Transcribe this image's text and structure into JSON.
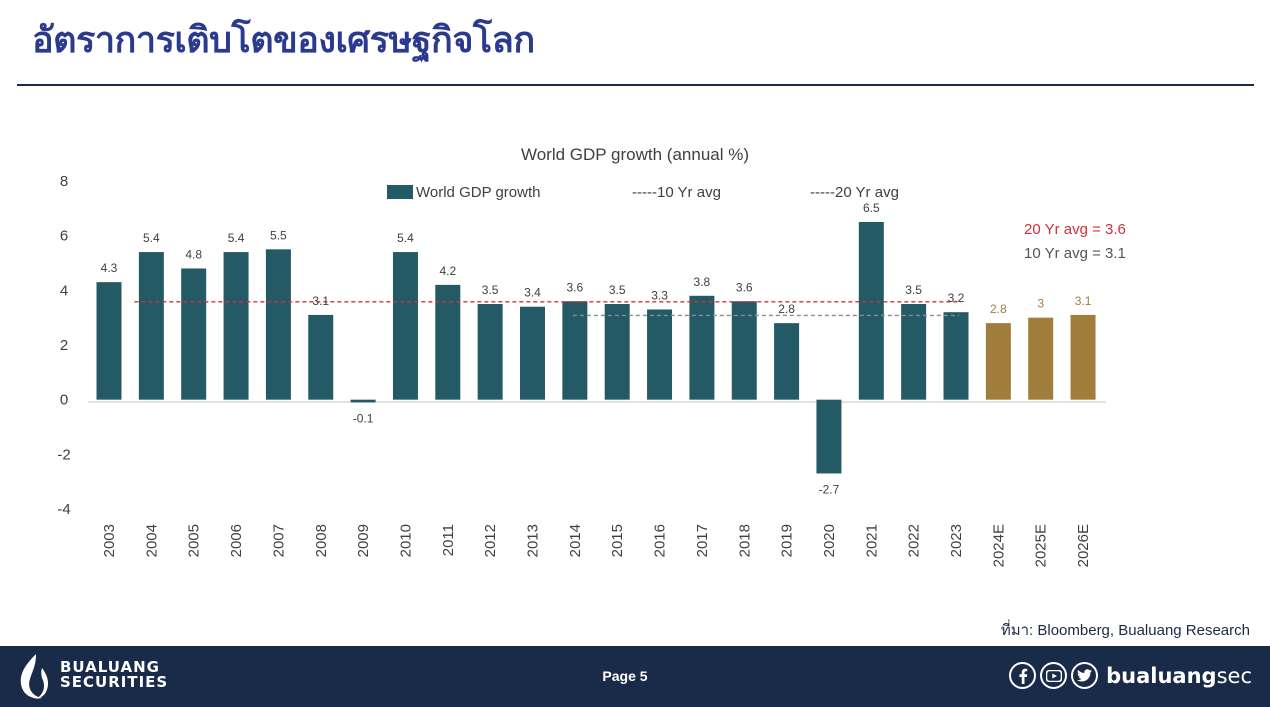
{
  "page_title": "อัตราการเติบโตของเศรษฐกิจโลก",
  "source_note": "ที่มา: Bloomberg, Bualuang Research",
  "footer": {
    "logo_line1": "BUALUANG",
    "logo_line2": "SECURITIES",
    "page_label": "Page 5",
    "social_handle_bold": "bualuang",
    "social_handle_rest": "sec",
    "icons": [
      "facebook-icon",
      "youtube-icon",
      "twitter-icon"
    ]
  },
  "chart_data": {
    "type": "bar",
    "title": "World GDP growth (annual %)",
    "xlabel": "",
    "ylabel": "",
    "ylim": [
      -4,
      8
    ],
    "yticks": [
      "8",
      "6",
      "4",
      "2",
      "0",
      "-2",
      "-4"
    ],
    "categories": [
      "2003",
      "2004",
      "2005",
      "2006",
      "2007",
      "2008",
      "2009",
      "2010",
      "2011",
      "2012",
      "2013",
      "2014",
      "2015",
      "2016",
      "2017",
      "2018",
      "2019",
      "2020",
      "2021",
      "2022",
      "2023",
      "2024E",
      "2025E",
      "2026E"
    ],
    "values": [
      4.3,
      5.4,
      4.8,
      5.4,
      5.5,
      3.1,
      -0.1,
      5.4,
      4.2,
      3.5,
      3.4,
      3.6,
      3.5,
      3.3,
      3.8,
      3.6,
      2.8,
      -2.7,
      6.5,
      3.5,
      3.2,
      2.8,
      3,
      3.1
    ],
    "value_labels": [
      "4.3",
      "5.4",
      "4.8",
      "5.4",
      "5.5",
      "3.1",
      "-0.1",
      "5.4",
      "4.2",
      "3.5",
      "3.4",
      "3.6",
      "3.5",
      "3.3",
      "3.8",
      "3.6",
      "2.8",
      "-2.7",
      "6.5",
      "3.5",
      "3.2",
      "2.8",
      "3",
      "3.1"
    ],
    "estimate_from_index": 21,
    "legend": {
      "position": "top",
      "bar": "World GDP growth",
      "avg10": "-----10 Yr avg",
      "avg20": "-----20 Yr avg"
    },
    "averages": {
      "avg20": {
        "value": 3.6,
        "from": "2004",
        "to": "2023",
        "label": "20 Yr avg = 3.6"
      },
      "avg10": {
        "value": 3.1,
        "from": "2014",
        "to": "2023",
        "label": "10 Yr avg = 3.1"
      }
    },
    "colors": {
      "bar": "#235a66",
      "estimate": "#a07d3b",
      "avg20": "#d0303e",
      "avg10": "#8c8c8c",
      "text": "#404040",
      "axis": "#d9d9d9"
    }
  }
}
